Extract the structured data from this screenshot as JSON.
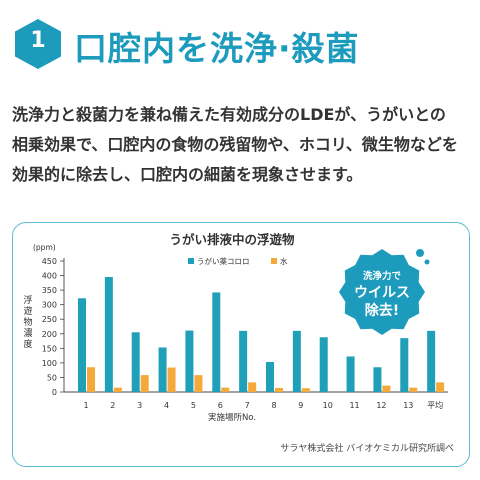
{
  "header": {
    "number": "1",
    "title": "口腔内を洗浄·殺菌"
  },
  "body": {
    "lines": [
      "洗浄力と殺菌力を兼ね備えた有効成分のLDEが、うがいとの",
      "相乗効果で、口腔内の食物の残留物や、ホコリ、微生物などを",
      "効果的に除去し、口腔内の細菌を現象させます。"
    ]
  },
  "callout": {
    "line1": "洗浄力で",
    "line2": "ウイルス",
    "line3": "除去!"
  },
  "source": "サラヤ株式会社 バイオケミカル研究所調べ",
  "colors": {
    "accent": "#1d9bbd",
    "series_teal": "#1fa0b8",
    "series_orange": "#f4a93a",
    "card_border": "#5bbcd4"
  },
  "chart_data": {
    "type": "bar",
    "title": "うがい排液中の浮遊物",
    "xlabel": "実施場所No.",
    "ylabel": "浮遊物濃度",
    "unit": "(ppm)",
    "ylim": [
      0,
      450
    ],
    "yticks": [
      0,
      50,
      100,
      150,
      200,
      250,
      300,
      350,
      400,
      450
    ],
    "grid": false,
    "legend": "top",
    "categories": [
      "1",
      "2",
      "3",
      "4",
      "5",
      "6",
      "7",
      "8",
      "9",
      "10",
      "11",
      "12",
      "13",
      "平均"
    ],
    "series": [
      {
        "name": "うがい薬コロロ",
        "color": "#1fa0b8",
        "values": [
          322,
          395,
          205,
          153,
          211,
          342,
          210,
          103,
          210,
          188,
          122,
          85,
          185,
          210
        ]
      },
      {
        "name": "水",
        "color": "#f4a93a",
        "values": [
          85,
          15,
          58,
          84,
          58,
          15,
          33,
          14,
          13,
          0,
          0,
          22,
          15,
          33
        ]
      }
    ]
  }
}
